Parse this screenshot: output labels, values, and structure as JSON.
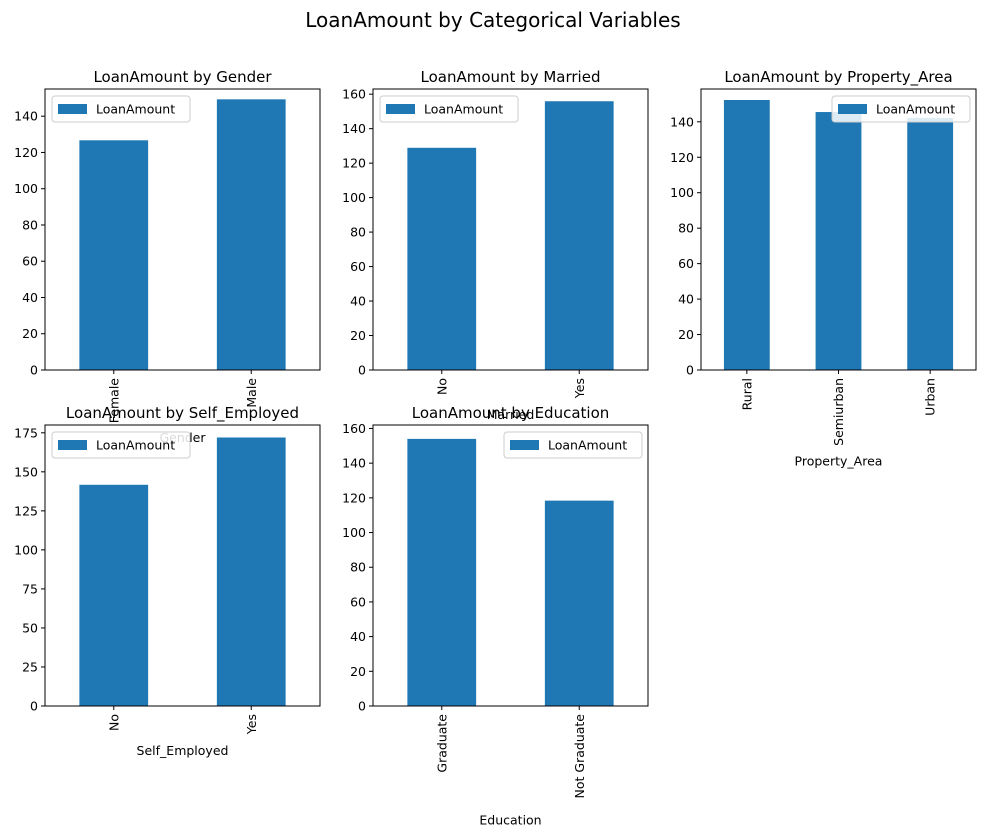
{
  "figure": {
    "suptitle": "LoanAmount by Categorical Variables"
  },
  "colors": {
    "bar": "#1f77b4",
    "axes": "#000000",
    "legend_border": "#cccccc"
  },
  "chart_data": [
    {
      "type": "bar",
      "title": "LoanAmount by Gender",
      "xlabel": "Gender",
      "ylabel": "",
      "categories": [
        "Female",
        "Male"
      ],
      "series": [
        {
          "name": "LoanAmount",
          "values": [
            126.7,
            149.3
          ]
        }
      ],
      "ylim": [
        0,
        155
      ],
      "yticks": [
        0,
        20,
        40,
        60,
        80,
        100,
        120,
        140
      ],
      "legend": "upper left",
      "grid": false
    },
    {
      "type": "bar",
      "title": "LoanAmount by Married",
      "xlabel": "Married",
      "ylabel": "",
      "categories": [
        "No",
        "Yes"
      ],
      "series": [
        {
          "name": "LoanAmount",
          "values": [
            128.9,
            155.9
          ]
        }
      ],
      "ylim": [
        0,
        163
      ],
      "yticks": [
        0,
        20,
        40,
        60,
        80,
        100,
        120,
        140,
        160
      ],
      "legend": "upper left",
      "grid": false
    },
    {
      "type": "bar",
      "title": "LoanAmount by Property_Area",
      "xlabel": "Property_Area",
      "ylabel": "",
      "categories": [
        "Rural",
        "Semiurban",
        "Urban"
      ],
      "series": [
        {
          "name": "LoanAmount",
          "values": [
            152.3,
            145.5,
            142.2
          ]
        }
      ],
      "ylim": [
        0,
        158.5
      ],
      "yticks": [
        0,
        20,
        40,
        60,
        80,
        100,
        120,
        140
      ],
      "legend": "upper right",
      "grid": false
    },
    {
      "type": "bar",
      "title": "LoanAmount by Self_Employed",
      "xlabel": "Self_Employed",
      "ylabel": "",
      "categories": [
        "No",
        "Yes"
      ],
      "series": [
        {
          "name": "LoanAmount",
          "values": [
            141.7,
            172.0
          ]
        }
      ],
      "ylim": [
        0,
        180
      ],
      "yticks": [
        0,
        25,
        50,
        75,
        100,
        125,
        150,
        175
      ],
      "legend": "upper left",
      "grid": false
    },
    {
      "type": "bar",
      "title": "LoanAmount by Education",
      "xlabel": "Education",
      "ylabel": "",
      "categories": [
        "Graduate",
        "Not Graduate"
      ],
      "series": [
        {
          "name": "LoanAmount",
          "values": [
            154.0,
            118.4
          ]
        }
      ],
      "ylim": [
        0,
        162
      ],
      "yticks": [
        0,
        20,
        40,
        60,
        80,
        100,
        120,
        140,
        160
      ],
      "legend": "upper right",
      "grid": false
    }
  ]
}
